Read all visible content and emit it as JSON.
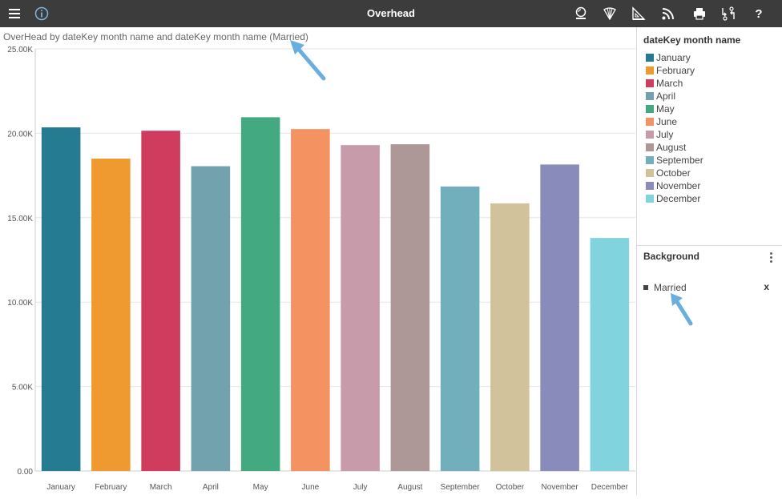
{
  "toolbar": {
    "title": "Overhead",
    "left_icons": [
      "hamburger-menu-icon",
      "info-icon"
    ],
    "right_icons": [
      "drill-icon",
      "color-fan-icon",
      "set-square-icon",
      "rss-feed-icon",
      "printer-icon",
      "swap-icon",
      "help-icon"
    ],
    "help_label": "?"
  },
  "chart": {
    "title": "OverHead by dateKey month name and dateKey month name (Married)"
  },
  "chart_data": {
    "type": "bar",
    "title": "OverHead by dateKey month name and dateKey month name (Married)",
    "categories": [
      "January",
      "February",
      "March",
      "April",
      "May",
      "June",
      "July",
      "August",
      "September",
      "October",
      "November",
      "December"
    ],
    "values": [
      20350,
      18500,
      20150,
      18050,
      20950,
      20250,
      19300,
      19350,
      16850,
      15850,
      18150,
      13800
    ],
    "colors": [
      "#247b92",
      "#ee9a31",
      "#cf3c5d",
      "#72a2ad",
      "#43a981",
      "#f59262",
      "#c89bab",
      "#ad9797",
      "#72afbd",
      "#d2c29b",
      "#898cbb",
      "#81d4de"
    ],
    "ylim": [
      0,
      25000
    ],
    "yticks": [
      0,
      5000,
      10000,
      15000,
      20000,
      25000
    ],
    "ytick_labels": [
      "0.00",
      "5.00K",
      "10.00K",
      "15.00K",
      "20.00K",
      "25.00K"
    ],
    "xlabel": "",
    "ylabel": "",
    "grid": true,
    "legend": "right"
  },
  "legend": {
    "title": "dateKey month name",
    "items": [
      {
        "label": "January",
        "color": "#247b92"
      },
      {
        "label": "February",
        "color": "#ee9a31"
      },
      {
        "label": "March",
        "color": "#cf3c5d"
      },
      {
        "label": "April",
        "color": "#72a2ad"
      },
      {
        "label": "May",
        "color": "#43a981"
      },
      {
        "label": "June",
        "color": "#f59262"
      },
      {
        "label": "July",
        "color": "#c89bab"
      },
      {
        "label": "August",
        "color": "#ad9797"
      },
      {
        "label": "September",
        "color": "#72afbd"
      },
      {
        "label": "October",
        "color": "#d2c29b"
      },
      {
        "label": "November",
        "color": "#898cbb"
      },
      {
        "label": "December",
        "color": "#81d4de"
      }
    ]
  },
  "background_panel": {
    "title": "Background",
    "filters": [
      {
        "label": "Married",
        "remove_label": "x"
      }
    ]
  },
  "annotation_arrow_color": "#6aaee0"
}
